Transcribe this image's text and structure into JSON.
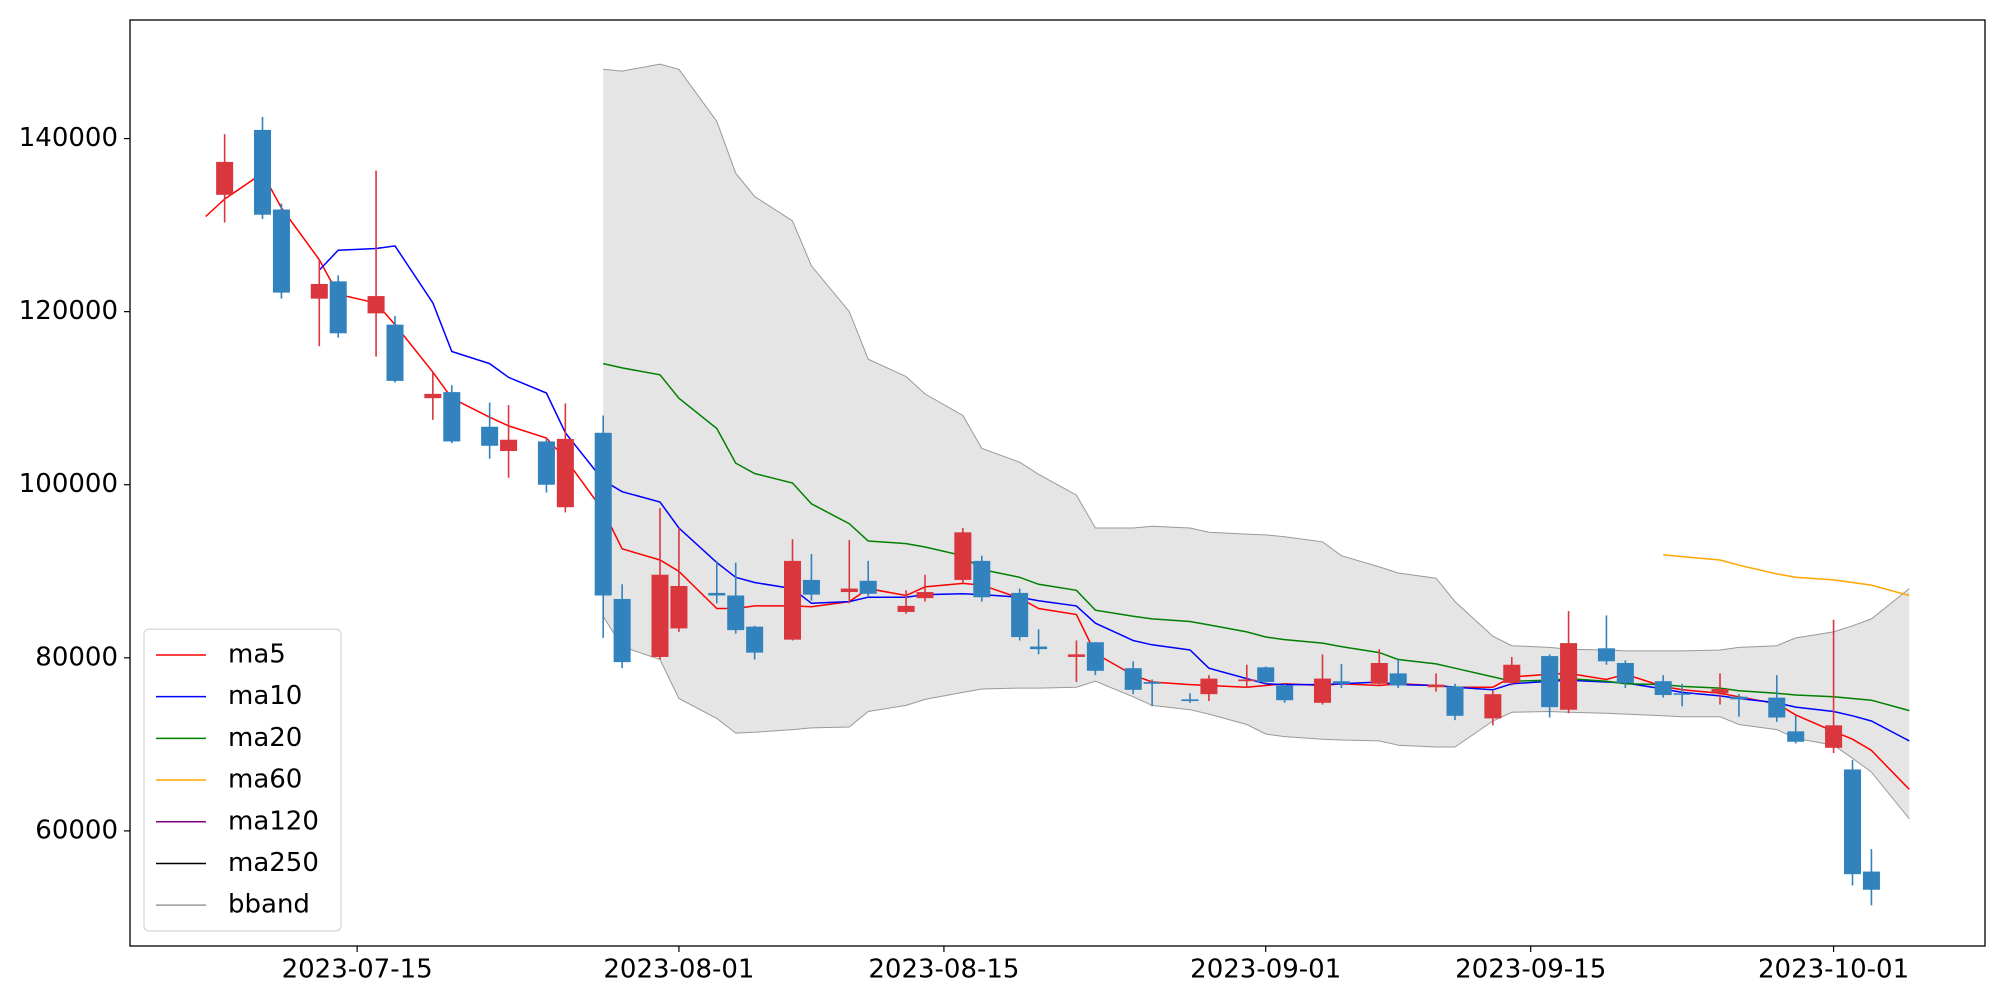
{
  "chart_data": {
    "type": "candlestick",
    "x": [
      "2023-07-07",
      "2023-07-08",
      "2023-07-10",
      "2023-07-11",
      "2023-07-13",
      "2023-07-14",
      "2023-07-16",
      "2023-07-17",
      "2023-07-19",
      "2023-07-20",
      "2023-07-22",
      "2023-07-23",
      "2023-07-25",
      "2023-07-26",
      "2023-07-28",
      "2023-07-29",
      "2023-07-31",
      "2023-08-01",
      "2023-08-03",
      "2023-08-04",
      "2023-08-05",
      "2023-08-07",
      "2023-08-08",
      "2023-08-10",
      "2023-08-11",
      "2023-08-13",
      "2023-08-14",
      "2023-08-16",
      "2023-08-17",
      "2023-08-19",
      "2023-08-20",
      "2023-08-22",
      "2023-08-23",
      "2023-08-25",
      "2023-08-26",
      "2023-08-28",
      "2023-08-29",
      "2023-08-31",
      "2023-09-01",
      "2023-09-02",
      "2023-09-04",
      "2023-09-05",
      "2023-09-07",
      "2023-09-08",
      "2023-09-10",
      "2023-09-11",
      "2023-09-13",
      "2023-09-14",
      "2023-09-16",
      "2023-09-17",
      "2023-09-19",
      "2023-09-20",
      "2023-09-22",
      "2023-09-23",
      "2023-09-25",
      "2023-09-26",
      "2023-09-28",
      "2023-09-29",
      "2023-10-01",
      "2023-10-02",
      "2023-10-03",
      "2023-10-05"
    ],
    "open": [
      null,
      133500,
      141000,
      131800,
      121500,
      123500,
      119800,
      118500,
      110000,
      110700,
      106700,
      103900,
      105000,
      97400,
      106000,
      86800,
      80100,
      83400,
      87500,
      87200,
      83600,
      82100,
      89000,
      87600,
      88900,
      85300,
      86900,
      89000,
      91200,
      87500,
      81300,
      80100,
      81800,
      78800,
      77200,
      75200,
      75800,
      77300,
      78900,
      76800,
      74800,
      77300,
      77000,
      78200,
      76600,
      76700,
      73000,
      77100,
      80200,
      74000,
      81100,
      79400,
      77300,
      75900,
      75900,
      75500,
      75400,
      71500,
      69600,
      67100,
      55300,
      null
    ],
    "high": [
      null,
      140500,
      142500,
      132500,
      126000,
      124200,
      136300,
      119500,
      113000,
      111500,
      109500,
      109200,
      105300,
      109400,
      108000,
      88500,
      97300,
      95000,
      91200,
      91000,
      83700,
      93700,
      92000,
      93600,
      91200,
      87800,
      89600,
      95000,
      91800,
      88000,
      83300,
      82000,
      81800,
      79600,
      77500,
      75900,
      78000,
      79200,
      79000,
      77000,
      80400,
      79300,
      81000,
      79800,
      78200,
      77000,
      76200,
      80100,
      80400,
      85400,
      84900,
      79700,
      78000,
      77000,
      78200,
      75800,
      78000,
      73300,
      84400,
      68200,
      57900,
      null
    ],
    "low": [
      null,
      130300,
      130700,
      121500,
      116000,
      117000,
      114800,
      111800,
      107500,
      104800,
      103000,
      100800,
      99100,
      96800,
      82300,
      78800,
      79800,
      83000,
      86300,
      82800,
      79800,
      82000,
      86600,
      86300,
      87000,
      85100,
      86500,
      88600,
      86500,
      82000,
      80400,
      77200,
      78000,
      75800,
      74400,
      74800,
      75000,
      76500,
      77000,
      74800,
      74600,
      76500,
      76800,
      76500,
      76100,
      72800,
      72200,
      76800,
      73100,
      73600,
      79200,
      76500,
      75400,
      74400,
      74600,
      73200,
      72600,
      70100,
      69000,
      53700,
      51400,
      null
    ],
    "close": [
      null,
      137300,
      131200,
      122200,
      123200,
      117500,
      121800,
      112000,
      110500,
      105000,
      104500,
      105200,
      100000,
      105300,
      87200,
      79500,
      89600,
      88300,
      87200,
      83200,
      80600,
      91200,
      87300,
      88000,
      87400,
      86000,
      87600,
      94500,
      87000,
      82400,
      81000,
      80400,
      78500,
      76300,
      77000,
      75000,
      77600,
      77500,
      77200,
      75100,
      77600,
      77000,
      79400,
      76800,
      76900,
      73300,
      75800,
      79200,
      74300,
      81700,
      79600,
      77100,
      75700,
      75800,
      76400,
      75200,
      73100,
      70300,
      72200,
      55000,
      53200,
      null
    ],
    "up_color": "#d9363e",
    "down_color": "#3182bd",
    "series": [
      {
        "name": "ma5",
        "color": "#ff0000",
        "values": [
          131000,
          133000,
          136000,
          132000,
          126000,
          122000,
          121000,
          118500,
          113000,
          110000,
          107800,
          106800,
          105400,
          103000,
          97000,
          92600,
          91300,
          90000,
          85700,
          85700,
          86000,
          86000,
          85900,
          86500,
          88000,
          87200,
          88200,
          88600,
          88400,
          86900,
          85700,
          85000,
          80500,
          78000,
          77200,
          76900,
          76800,
          76600,
          76800,
          77000,
          76800,
          77000,
          76800,
          77000,
          76800,
          76600,
          76600,
          77800,
          78100,
          78200,
          77500,
          78100,
          76700,
          76300,
          75900,
          75500,
          74700,
          73400,
          71500,
          70600,
          69300,
          64800
        ]
      },
      {
        "name": "ma10",
        "color": "#0000ff",
        "values": [
          null,
          null,
          null,
          null,
          124800,
          127100,
          127300,
          127600,
          121000,
          115400,
          114000,
          112400,
          110600,
          106000,
          100500,
          99200,
          98000,
          95000,
          91000,
          89300,
          88700,
          88000,
          86300,
          86500,
          87000,
          87000,
          87300,
          87400,
          87300,
          87000,
          86600,
          86000,
          84000,
          82000,
          81500,
          80900,
          78800,
          77600,
          77000,
          76900,
          76900,
          77000,
          77200,
          76900,
          76800,
          76600,
          76300,
          77000,
          77300,
          77400,
          77200,
          77100,
          76400,
          76000,
          75600,
          75300,
          74800,
          74300,
          73800,
          73300,
          72700,
          70400
        ]
      },
      {
        "name": "ma20",
        "color": "#008000",
        "values": [
          null,
          null,
          null,
          null,
          null,
          null,
          null,
          null,
          null,
          null,
          null,
          null,
          null,
          null,
          114000,
          113500,
          112700,
          110000,
          106500,
          102500,
          101300,
          100200,
          97800,
          95500,
          93500,
          93200,
          92800,
          91800,
          90200,
          89300,
          88500,
          87800,
          85500,
          84800,
          84500,
          84200,
          83800,
          83000,
          82400,
          82100,
          81700,
          81300,
          80600,
          79800,
          79300,
          78800,
          77800,
          77300,
          77400,
          77600,
          77300,
          77000,
          76900,
          76700,
          76500,
          76200,
          75900,
          75700,
          75500,
          75300,
          75100,
          73900
        ]
      },
      {
        "name": "ma60",
        "color": "#ffa500",
        "values": [
          null,
          null,
          null,
          null,
          null,
          null,
          null,
          null,
          null,
          null,
          null,
          null,
          null,
          null,
          null,
          null,
          null,
          null,
          null,
          null,
          null,
          null,
          null,
          null,
          null,
          null,
          null,
          null,
          null,
          null,
          null,
          null,
          null,
          null,
          null,
          null,
          null,
          null,
          null,
          null,
          null,
          null,
          null,
          null,
          null,
          null,
          null,
          null,
          null,
          null,
          null,
          null,
          91900,
          91700,
          91300,
          90700,
          89700,
          89300,
          89000,
          88700,
          88400,
          87200
        ]
      },
      {
        "name": "ma120",
        "color": "#800080",
        "values": [
          null,
          null,
          null,
          null,
          null,
          null,
          null,
          null,
          null,
          null,
          null,
          null,
          null,
          null,
          null,
          null,
          null,
          null,
          null,
          null,
          null,
          null,
          null,
          null,
          null,
          null,
          null,
          null,
          null,
          null,
          null,
          null,
          null,
          null,
          null,
          null,
          null,
          null,
          null,
          null,
          null,
          null,
          null,
          null,
          null,
          null,
          null,
          null,
          null,
          null,
          null,
          null,
          null,
          null,
          null,
          null,
          null,
          null,
          null,
          null,
          null,
          null
        ]
      },
      {
        "name": "ma250",
        "color": "#000000",
        "values": [
          null,
          null,
          null,
          null,
          null,
          null,
          null,
          null,
          null,
          null,
          null,
          null,
          null,
          null,
          null,
          null,
          null,
          null,
          null,
          null,
          null,
          null,
          null,
          null,
          null,
          null,
          null,
          null,
          null,
          null,
          null,
          null,
          null,
          null,
          null,
          null,
          null,
          null,
          null,
          null,
          null,
          null,
          null,
          null,
          null,
          null,
          null,
          null,
          null,
          null,
          null,
          null,
          null,
          null,
          null,
          null,
          null,
          null,
          null,
          null,
          null,
          null
        ]
      }
    ],
    "band": {
      "name": "bband",
      "color": "#999999",
      "fill": "#e5e5e5",
      "upper": [
        null,
        null,
        null,
        null,
        null,
        null,
        null,
        null,
        null,
        null,
        null,
        null,
        null,
        null,
        148000,
        147800,
        148600,
        148000,
        142000,
        136000,
        133300,
        130500,
        125300,
        120000,
        114500,
        112500,
        110500,
        108000,
        104200,
        102600,
        101200,
        98800,
        95000,
        95000,
        95200,
        95000,
        94500,
        94300,
        94200,
        94000,
        93400,
        91800,
        90500,
        89800,
        89200,
        86500,
        82500,
        81400,
        81200,
        81000,
        80900,
        80800,
        80800,
        80800,
        80900,
        81200,
        81400,
        82300,
        83000,
        83700,
        84500,
        88000
      ],
      "lower": [
        null,
        null,
        null,
        null,
        null,
        null,
        null,
        null,
        null,
        null,
        null,
        null,
        null,
        null,
        84800,
        81300,
        79800,
        75300,
        73000,
        71300,
        71400,
        71700,
        71900,
        72000,
        73800,
        74500,
        75200,
        76000,
        76400,
        76500,
        76500,
        76600,
        77300,
        75500,
        74500,
        74000,
        73500,
        72300,
        71200,
        70900,
        70600,
        70500,
        70400,
        69900,
        69700,
        69700,
        72700,
        73700,
        73800,
        73700,
        73600,
        73500,
        73300,
        73200,
        73200,
        72300,
        71700,
        70700,
        69900,
        68400,
        66800,
        61400
      ]
    },
    "xlim": [
      "2023-07-03",
      "2023-10-09"
    ],
    "xticks": [
      "2023-07-15",
      "2023-08-01",
      "2023-08-15",
      "2023-09-01",
      "2023-09-15",
      "2023-10-01"
    ],
    "ylim": [
      46700,
      153700
    ],
    "yticks": [
      60000,
      80000,
      100000,
      120000,
      140000
    ],
    "legend": "lower left"
  }
}
